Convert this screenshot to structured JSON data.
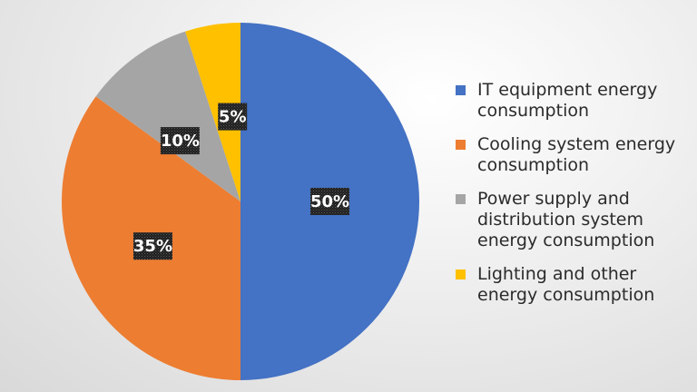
{
  "chart_data": {
    "type": "pie",
    "slices": [
      {
        "label": "IT equipment energy consumption",
        "value": 50,
        "display": "50%",
        "color": "#4472C4"
      },
      {
        "label": "Cooling system energy consumption",
        "value": 35,
        "display": "35%",
        "color": "#ED7D31"
      },
      {
        "label": "Power supply and distribution system energy consumption",
        "value": 10,
        "display": "10%",
        "color": "#A5A5A5"
      },
      {
        "label": "Lighting and other energy consumption",
        "value": 5,
        "display": "5%",
        "color": "#FFC000"
      }
    ],
    "legend_position": "right",
    "start_angle": "top",
    "direction": "clockwise"
  }
}
